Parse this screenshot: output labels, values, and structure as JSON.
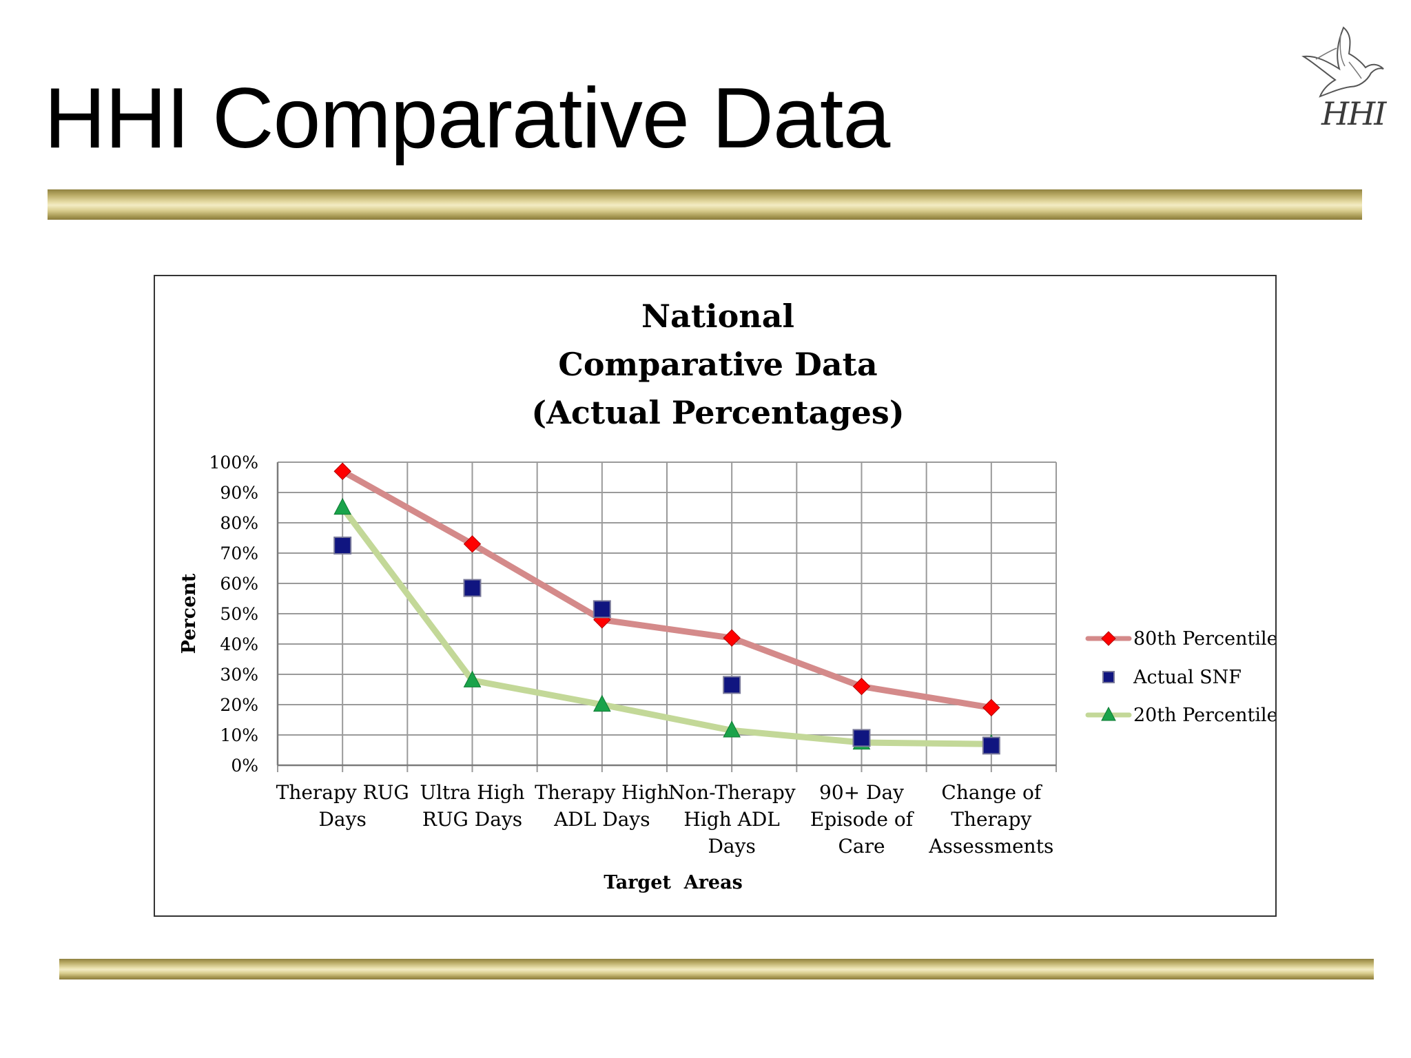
{
  "slide": {
    "title": "HHI Comparative Data",
    "logo_text": "HHI"
  },
  "colors": {
    "gold": "#c8b870",
    "series_80": "#d48a8a",
    "marker_80": "#ff0000",
    "series_20": "#c3d898",
    "marker_20": "#1aa34a",
    "marker_actual": "#101580",
    "grid": "#9a9a9a"
  },
  "chart_data": {
    "type": "line",
    "title": [
      "National",
      "Comparative Data",
      "(Actual Percentages)"
    ],
    "xlabel": "Target  Areas",
    "ylabel": "Percent",
    "ylim": [
      0,
      100
    ],
    "yticks": [
      "0%",
      "10%",
      "20%",
      "30%",
      "40%",
      "50%",
      "60%",
      "70%",
      "80%",
      "90%",
      "100%"
    ],
    "categories": [
      [
        "Therapy RUG",
        "Days"
      ],
      [
        "Ultra High",
        "RUG Days"
      ],
      [
        "Therapy High",
        "ADL Days"
      ],
      [
        "Non-Therapy",
        "High ADL",
        "Days"
      ],
      [
        "90+ Day",
        "Episode of",
        "Care"
      ],
      [
        "Change of",
        "Therapy",
        "Assessments"
      ]
    ],
    "grid": true,
    "legend_position": "right",
    "series": [
      {
        "name": "80th Percentile",
        "marker": "diamond",
        "line": true,
        "values": [
          97,
          73,
          48,
          42,
          26,
          19
        ]
      },
      {
        "name": "Actual SNF",
        "marker": "square",
        "line": false,
        "values": [
          72.5,
          58.5,
          51.5,
          26.5,
          9,
          6.5
        ]
      },
      {
        "name": "20th Percentile",
        "marker": "triangle",
        "line": true,
        "values": [
          85,
          28,
          20,
          11.5,
          7.5,
          7
        ]
      }
    ]
  }
}
